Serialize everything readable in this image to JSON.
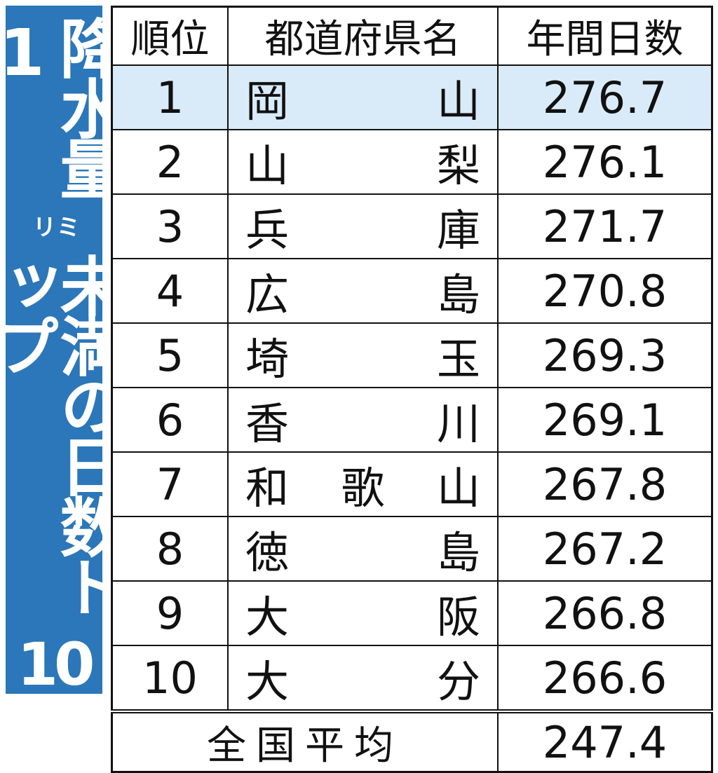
{
  "title": {
    "part1": "降水量1",
    "unit": "ミリ",
    "part2": "未満の日数トップ",
    "part3": "10"
  },
  "colors": {
    "banner": "#2b77b9",
    "highlight_row": "#d9ebf8"
  },
  "chart_data": {
    "type": "table",
    "title": "降水量1ミリ未満の日数トップ10",
    "columns": [
      "順位",
      "都道府県名",
      "年間日数"
    ],
    "rows": [
      {
        "rank": "1",
        "name": "岡山",
        "days": "276.7"
      },
      {
        "rank": "2",
        "name": "山梨",
        "days": "276.1"
      },
      {
        "rank": "3",
        "name": "兵庫",
        "days": "271.7"
      },
      {
        "rank": "4",
        "name": "広島",
        "days": "270.8"
      },
      {
        "rank": "5",
        "name": "埼玉",
        "days": "269.3"
      },
      {
        "rank": "6",
        "name": "香川",
        "days": "269.1"
      },
      {
        "rank": "7",
        "name": "和歌山",
        "days": "267.8"
      },
      {
        "rank": "8",
        "name": "徳島",
        "days": "267.2"
      },
      {
        "rank": "9",
        "name": "大阪",
        "days": "266.8"
      },
      {
        "rank": "10",
        "name": "大分",
        "days": "266.6"
      }
    ],
    "average": {
      "label": "全国平均",
      "days": "247.4"
    }
  }
}
